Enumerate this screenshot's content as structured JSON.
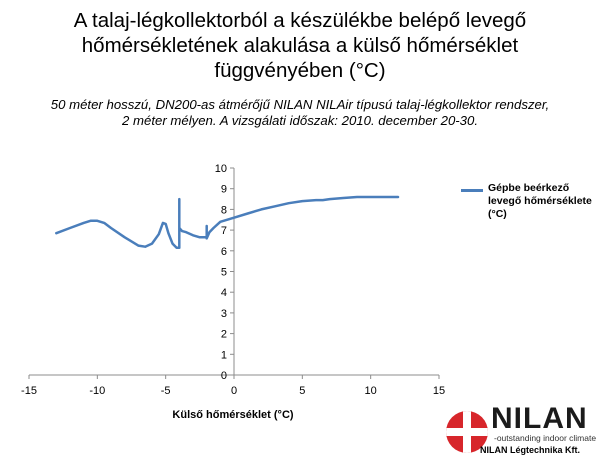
{
  "title": {
    "line1": "A talaj-légkollektorból a készülékbe belépő levegő",
    "line2": "hőmérsékletének alakulása a külső hőmérséklet",
    "line3": "függvényében (°C)"
  },
  "subtitle": {
    "line1": "50 méter hosszú, DN200-as átmérőjű NILAN NILAir típusú talaj-légkollektor rendszer,",
    "line2": "2 méter mélyen. A vizsgálati időszak: 2010. december 20-30."
  },
  "logo": {
    "word": "NILAN",
    "tagline": "-outstanding indoor climate",
    "company": "NILAN Légtechnika Kft."
  },
  "colors": {
    "series": "#4a7ebb",
    "axis": "#8c8c8c"
  },
  "chart_data": {
    "type": "line",
    "xlabel": "Külső hőmérséklet (°C)",
    "ylabel": "",
    "xlim": [
      -15,
      15
    ],
    "ylim": [
      0,
      10
    ],
    "x_ticks": [
      -15,
      -10,
      -5,
      0,
      5,
      10,
      15
    ],
    "y_ticks": [
      0,
      1,
      2,
      3,
      4,
      5,
      6,
      7,
      8,
      9,
      10
    ],
    "legend_position": "right",
    "grid": false,
    "series": [
      {
        "name": "Gépbe beérkező levegő hőmérséklete (°C)",
        "x": [
          -13,
          -12,
          -11,
          -10.5,
          -10,
          -9.5,
          -9,
          -8,
          -7,
          -6.5,
          -6,
          -5.5,
          -5.2,
          -5,
          -4.8,
          -4.5,
          -4.2,
          -4,
          -4,
          -4,
          -3.8,
          -3.5,
          -3,
          -2.5,
          -2,
          -2,
          -2,
          -1.8,
          -1.5,
          -1,
          0,
          1,
          2,
          3,
          4,
          5,
          6,
          6.5,
          7,
          8,
          9,
          10,
          11,
          12
        ],
        "y": [
          6.85,
          7.1,
          7.35,
          7.45,
          7.45,
          7.35,
          7.1,
          6.65,
          6.25,
          6.2,
          6.35,
          6.8,
          7.35,
          7.3,
          6.85,
          6.35,
          6.15,
          6.15,
          8.5,
          7.1,
          6.95,
          6.9,
          6.75,
          6.65,
          6.65,
          7.2,
          6.6,
          6.9,
          7.1,
          7.4,
          7.6,
          7.8,
          8.0,
          8.15,
          8.3,
          8.4,
          8.45,
          8.45,
          8.5,
          8.55,
          8.6,
          8.6,
          8.6,
          8.6
        ]
      }
    ]
  }
}
